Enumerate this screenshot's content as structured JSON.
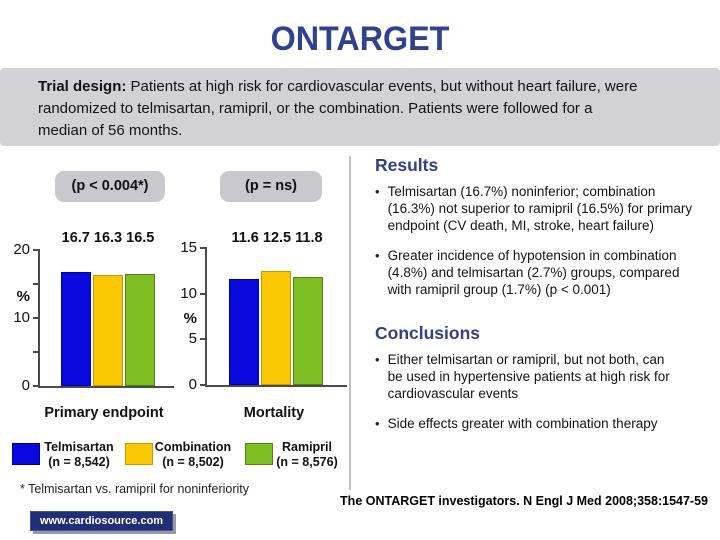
{
  "slide_title": "ONTARGET",
  "trial_design": {
    "label": "Trial design:",
    "text": "Patients at high risk for cardiovascular events, but without heart failure, were\nrandomized to telmisartan, ramipril, or the combination. Patients were followed for a\nmedian of 56 months."
  },
  "chart_data": [
    {
      "type": "bar",
      "p_label": "(p < 0.004*)",
      "categories": [
        "Telmisartan",
        "Combination",
        "Ramipril"
      ],
      "values": [
        16.7,
        16.3,
        16.5
      ],
      "values_label": "16.7 16.3 16.5",
      "xlabel": "Primary endpoint",
      "ylabel": "%",
      "ylim": [
        0,
        20
      ],
      "grid": false,
      "yticks": [
        {
          "v": 0,
          "label": "0"
        },
        {
          "v": 5,
          "label": ""
        },
        {
          "v": 10,
          "label": "10"
        },
        {
          "v": 15,
          "label": ""
        },
        {
          "v": 20,
          "label": "20"
        }
      ]
    },
    {
      "type": "bar",
      "p_label": "(p = ns)",
      "categories": [
        "Telmisartan",
        "Combination",
        "Ramipril"
      ],
      "values": [
        11.6,
        12.5,
        11.8
      ],
      "values_label": "11.6 12.5 11.8",
      "xlabel": "Mortality",
      "ylabel": "%",
      "ylim": [
        0,
        15
      ],
      "grid": false,
      "yticks": [
        {
          "v": 0,
          "label": "0"
        },
        {
          "v": 5,
          "label": "5"
        },
        {
          "v": 10,
          "label": "10"
        },
        {
          "v": 15,
          "label": "15"
        }
      ]
    }
  ],
  "legend": {
    "items": [
      {
        "name": "Telmisartan",
        "n": "(n = 8,542)",
        "color": "#0a0ade",
        "border": "#0000a0"
      },
      {
        "name": "Combination",
        "n": "(n = 8,502)",
        "color": "#f9c802",
        "border": "#c29a00"
      },
      {
        "name": "Ramipril",
        "n": "(n = 8,576)",
        "color": "#7dbe23",
        "border": "#557f14"
      }
    ]
  },
  "footnote": "* Telmisartan vs. ramipril for noninferiority",
  "results": {
    "heading": "Results",
    "bullets": [
      "Telmisartan (16.7%) noninferior; combination\n(16.3%) not superior to ramipril (16.5%) for primary\nendpoint (CV death, MI, stroke, heart failure)",
      "Greater incidence of hypotension in combination\n(4.8%) and telmisartan (2.7%) groups, compared\nwith ramipril group (1.7%) (p < 0.001)"
    ]
  },
  "conclusions": {
    "heading": "Conclusions",
    "bullets": [
      "Either telmisartan or ramipril, but not both, can\nbe used in hypertensive patients at high risk for\ncardiovascular events",
      "Side effects greater with combination therapy"
    ]
  },
  "citation": "The ONTARGET investigators. N Engl J Med 2008;358:1547-59",
  "site_badge": "www.cardiosource.com",
  "colors": {
    "accent_blue": "#31408f",
    "trial_box_gray": "#d2d1d5",
    "p_badge_gray": "#c9c9cd",
    "site_badge_navy": "#1f2e75"
  }
}
